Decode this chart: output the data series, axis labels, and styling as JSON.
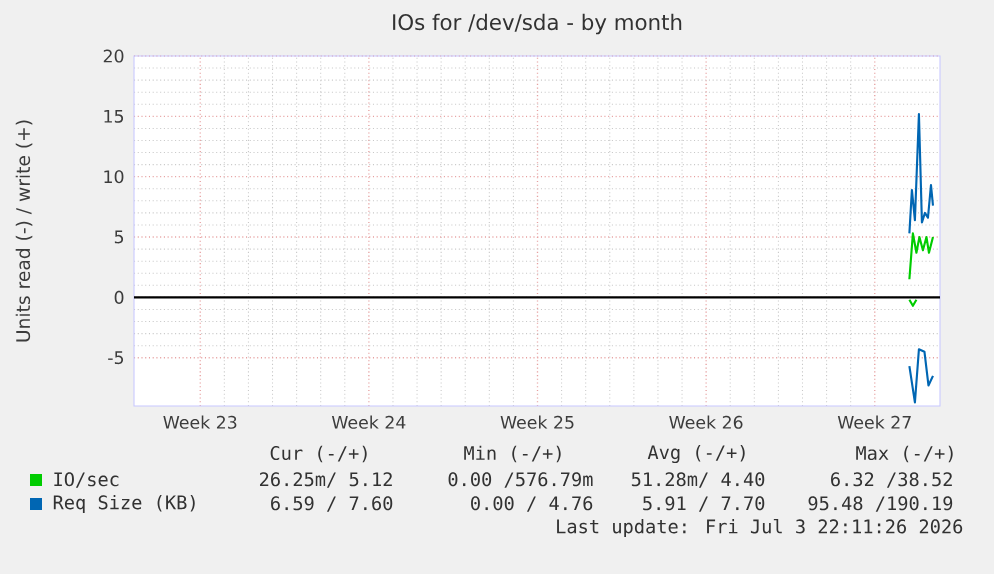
{
  "chart_data": {
    "type": "line",
    "title": "IOs for /dev/sda - by month",
    "ylabel": "Units read (-) / write (+)",
    "xlim": [
      "2026-05-31T18:00",
      "2026-07-04T05:00"
    ],
    "xticks": [
      {
        "value": "2026-06-03T12:00",
        "label": "Week 23"
      },
      {
        "value": "2026-06-10T12:00",
        "label": "Week 24"
      },
      {
        "value": "2026-06-17T12:00",
        "label": "Week 25"
      },
      {
        "value": "2026-06-24T12:00",
        "label": "Week 26"
      },
      {
        "value": "2026-07-01T12:00",
        "label": "Week 27"
      }
    ],
    "ylim": [
      -9,
      20
    ],
    "yticks": [
      -5,
      0,
      5,
      10,
      15,
      20
    ],
    "grid": true,
    "legend": "bottom",
    "ref_lines": [
      {
        "axis": "y",
        "value": 0,
        "color": "#000000"
      }
    ],
    "series": [
      {
        "name": "IO/sec",
        "color": "#00cc00",
        "x": [
          "2026-07-02T22:30",
          "2026-07-03T02:00",
          "2026-07-03T05:30",
          "2026-07-03T08:30",
          "2026-07-03T12:00",
          "2026-07-03T15:30",
          "2026-07-03T18:00",
          "2026-07-03T22:00"
        ],
        "values": [
          1.5,
          5.3,
          3.7,
          5.0,
          3.9,
          5.0,
          3.7,
          5.0
        ]
      },
      {
        "color": "#00cc00",
        "x": [
          "2026-07-02T22:30",
          "2026-07-03T02:00",
          "2026-07-03T05:30"
        ],
        "values": [
          -0.2,
          -0.7,
          -0.2
        ]
      },
      {
        "name": "Req Size (KB)",
        "color": "#0066b3",
        "x": [
          "2026-07-02T22:30",
          "2026-07-03T01:00",
          "2026-07-03T04:00",
          "2026-07-03T08:00",
          "2026-07-03T11:00",
          "2026-07-03T14:00",
          "2026-07-03T17:00",
          "2026-07-03T20:00",
          "2026-07-03T22:00"
        ],
        "values": [
          5.3,
          8.9,
          6.4,
          15.2,
          6.2,
          7.0,
          6.6,
          9.3,
          7.6
        ]
      },
      {
        "color": "#0066b3",
        "x": [
          "2026-07-02T22:30",
          "2026-07-03T04:00",
          "2026-07-03T08:00",
          "2026-07-03T13:30",
          "2026-07-03T17:30",
          "2026-07-03T22:00"
        ],
        "values": [
          -5.7,
          -8.7,
          -4.3,
          -4.5,
          -7.3,
          -6.5
        ]
      }
    ],
    "annotations": [
      "Cur (-/+)",
      "Min (-/+)",
      "Avg (-/+)",
      "Max (-/+)",
      "26.25m/ 5.12",
      "0.00 /576.79m",
      "51.28m/ 4.40",
      "6.32 /38.52",
      "6.59 / 7.60",
      "0.00 / 4.76",
      "5.91 / 7.70",
      "95.48 /190.19",
      "Last update: Fri Jul  3 22:11:26 2026"
    ]
  }
}
